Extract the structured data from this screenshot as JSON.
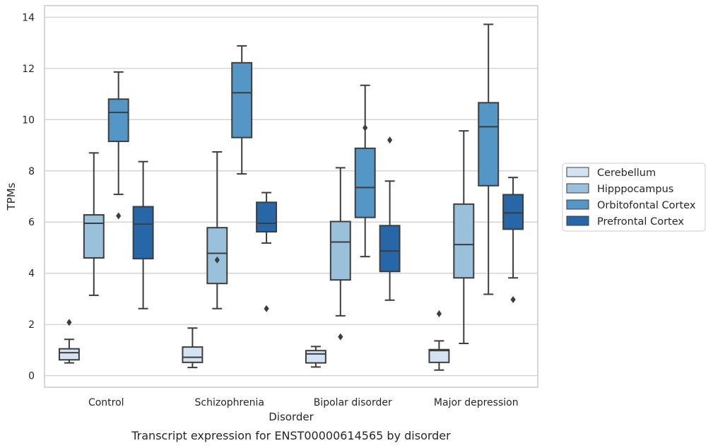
{
  "chart_data": {
    "type": "box",
    "title": "",
    "caption": "Transcript expression for ENST00000614565 by disorder",
    "xlabel": "Disorder",
    "ylabel": "TPMs",
    "ylim": [
      -0.45,
      14.45
    ],
    "yticks": [
      0,
      2,
      4,
      6,
      8,
      10,
      12,
      14
    ],
    "grid": "horizontal",
    "legend_position": "right",
    "categories": [
      "Control",
      "Schizophrenia",
      "Bipolar disorder",
      "Major depression"
    ],
    "series": [
      {
        "name": "Cerebellum",
        "color": "#d4e3f2",
        "boxes": [
          {
            "whislo": 0.5,
            "q1": 0.62,
            "med": 0.9,
            "q3": 1.05,
            "whishi": 1.42,
            "fliers": [
              2.08
            ]
          },
          {
            "whislo": 0.32,
            "q1": 0.52,
            "med": 0.72,
            "q3": 1.12,
            "whishi": 1.86,
            "fliers": []
          },
          {
            "whislo": 0.34,
            "q1": 0.5,
            "med": 0.85,
            "q3": 0.98,
            "whishi": 1.14,
            "fliers": []
          },
          {
            "whislo": 0.22,
            "q1": 0.52,
            "med": 0.98,
            "q3": 1.02,
            "whishi": 1.36,
            "fliers": [
              2.42
            ]
          }
        ]
      },
      {
        "name": "Hipppocampus",
        "color": "#9ac1dc",
        "boxes": [
          {
            "whislo": 3.14,
            "q1": 4.6,
            "med": 5.95,
            "q3": 6.28,
            "whishi": 8.7,
            "fliers": []
          },
          {
            "whislo": 2.62,
            "q1": 3.6,
            "med": 4.78,
            "q3": 5.78,
            "whishi": 8.74,
            "fliers": [
              4.52
            ]
          },
          {
            "whislo": 2.34,
            "q1": 3.74,
            "med": 5.22,
            "q3": 6.02,
            "whishi": 8.12,
            "fliers": [
              1.52
            ]
          },
          {
            "whislo": 1.26,
            "q1": 3.82,
            "med": 5.12,
            "q3": 6.7,
            "whishi": 9.56,
            "fliers": []
          }
        ]
      },
      {
        "name": "Orbitofontal Cortex",
        "color": "#5497c6",
        "boxes": [
          {
            "whislo": 7.08,
            "q1": 9.15,
            "med": 10.28,
            "q3": 10.8,
            "whishi": 11.86,
            "fliers": [
              6.24
            ]
          },
          {
            "whislo": 7.88,
            "q1": 9.3,
            "med": 11.05,
            "q3": 12.22,
            "whishi": 12.88,
            "fliers": []
          },
          {
            "whislo": 4.65,
            "q1": 6.18,
            "med": 7.35,
            "q3": 8.88,
            "whishi": 11.34,
            "fliers": [
              9.68
            ]
          },
          {
            "whislo": 3.18,
            "q1": 7.42,
            "med": 9.72,
            "q3": 10.66,
            "whishi": 13.72,
            "fliers": []
          }
        ]
      },
      {
        "name": "Prefrontal Cortex",
        "color": "#2767a8",
        "boxes": [
          {
            "whislo": 2.62,
            "q1": 4.57,
            "med": 5.92,
            "q3": 6.6,
            "whishi": 8.36,
            "fliers": []
          },
          {
            "whislo": 5.18,
            "q1": 5.62,
            "med": 5.95,
            "q3": 6.77,
            "whishi": 7.15,
            "fliers": [
              2.62
            ]
          },
          {
            "whislo": 2.95,
            "q1": 4.07,
            "med": 4.87,
            "q3": 5.86,
            "whishi": 7.6,
            "fliers": [
              9.2
            ]
          },
          {
            "whislo": 3.82,
            "q1": 5.72,
            "med": 6.36,
            "q3": 7.07,
            "whishi": 7.74,
            "fliers": [
              2.97
            ]
          }
        ]
      }
    ]
  }
}
